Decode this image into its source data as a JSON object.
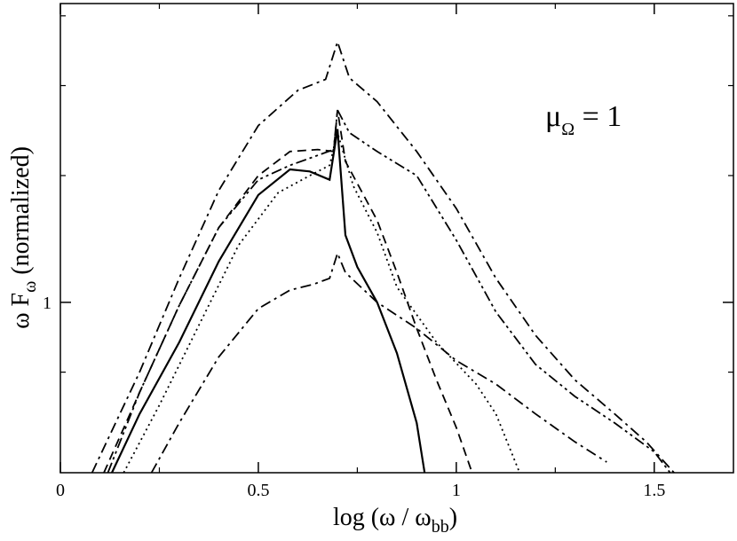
{
  "chart_data": {
    "type": "line",
    "xlim": [
      0,
      1.7
    ],
    "ylim": [
      0.58,
      2.6
    ],
    "ylog": true,
    "x_ticks": [
      {
        "value": 0,
        "label": "0"
      },
      {
        "value": 0.5,
        "label": "0.5"
      },
      {
        "value": 1,
        "label": "1"
      },
      {
        "value": 1.5,
        "label": "1.5"
      }
    ],
    "y_ticks": [
      {
        "value": 1,
        "label": "1"
      }
    ],
    "xlabel": {
      "main": "log (ω / ω",
      "sub": "bb",
      "end": ")"
    },
    "ylabel": {
      "a": "ω F",
      "sub": "ω",
      "b": " (normalized)"
    },
    "annotation": {
      "main": "μ",
      "sub": "Ω",
      "rest": " = 1"
    },
    "series": [
      {
        "style": "solid",
        "color": "#000000",
        "points": [
          [
            0.13,
            0.58
          ],
          [
            0.2,
            0.7
          ],
          [
            0.3,
            0.88
          ],
          [
            0.4,
            1.14
          ],
          [
            0.5,
            1.41
          ],
          [
            0.58,
            1.53
          ],
          [
            0.63,
            1.52
          ],
          [
            0.68,
            1.48
          ],
          [
            0.7,
            1.74
          ],
          [
            0.72,
            1.24
          ],
          [
            0.75,
            1.12
          ],
          [
            0.8,
            1.0
          ],
          [
            0.85,
            0.85
          ],
          [
            0.9,
            0.68
          ],
          [
            0.92,
            0.58
          ]
        ]
      },
      {
        "style": "dashed",
        "color": "#000000",
        "points": [
          [
            0.11,
            0.58
          ],
          [
            0.2,
            0.75
          ],
          [
            0.3,
            0.99
          ],
          [
            0.4,
            1.27
          ],
          [
            0.5,
            1.5
          ],
          [
            0.58,
            1.62
          ],
          [
            0.65,
            1.63
          ],
          [
            0.69,
            1.62
          ],
          [
            0.7,
            1.85
          ],
          [
            0.72,
            1.57
          ],
          [
            0.8,
            1.3
          ],
          [
            0.85,
            1.1
          ],
          [
            0.9,
            0.92
          ],
          [
            0.95,
            0.78
          ],
          [
            1.0,
            0.67
          ],
          [
            1.04,
            0.58
          ]
        ]
      },
      {
        "style": "dotted",
        "color": "#000000",
        "points": [
          [
            0.16,
            0.58
          ],
          [
            0.25,
            0.72
          ],
          [
            0.35,
            0.93
          ],
          [
            0.45,
            1.2
          ],
          [
            0.55,
            1.42
          ],
          [
            0.63,
            1.5
          ],
          [
            0.68,
            1.55
          ],
          [
            0.7,
            1.72
          ],
          [
            0.74,
            1.45
          ],
          [
            0.8,
            1.25
          ],
          [
            0.85,
            1.05
          ],
          [
            0.95,
            0.88
          ],
          [
            1.05,
            0.77
          ],
          [
            1.1,
            0.7
          ],
          [
            1.16,
            0.58
          ]
        ]
      },
      {
        "style": "dashdot",
        "color": "#000000",
        "points": [
          [
            0.08,
            0.58
          ],
          [
            0.2,
            0.8
          ],
          [
            0.3,
            1.08
          ],
          [
            0.4,
            1.43
          ],
          [
            0.5,
            1.76
          ],
          [
            0.6,
            1.97
          ],
          [
            0.67,
            2.04
          ],
          [
            0.7,
            2.3
          ],
          [
            0.73,
            2.05
          ],
          [
            0.8,
            1.9
          ],
          [
            0.9,
            1.62
          ],
          [
            1.0,
            1.35
          ],
          [
            1.1,
            1.08
          ],
          [
            1.2,
            0.9
          ],
          [
            1.3,
            0.78
          ],
          [
            1.4,
            0.7
          ],
          [
            1.48,
            0.64
          ],
          [
            1.55,
            0.58
          ]
        ]
      },
      {
        "style": "dashdotdot",
        "color": "#000000",
        "points": [
          [
            0.12,
            0.58
          ],
          [
            0.2,
            0.75
          ],
          [
            0.3,
            0.99
          ],
          [
            0.4,
            1.27
          ],
          [
            0.5,
            1.48
          ],
          [
            0.58,
            1.55
          ],
          [
            0.65,
            1.6
          ],
          [
            0.69,
            1.63
          ],
          [
            0.7,
            1.85
          ],
          [
            0.73,
            1.72
          ],
          [
            0.8,
            1.62
          ],
          [
            0.9,
            1.5
          ],
          [
            1.0,
            1.22
          ],
          [
            1.1,
            0.97
          ],
          [
            1.2,
            0.82
          ],
          [
            1.3,
            0.74
          ],
          [
            1.4,
            0.68
          ],
          [
            1.5,
            0.62
          ],
          [
            1.54,
            0.58
          ]
        ]
      },
      {
        "style": "dashdot-lower",
        "color": "#000000",
        "points": [
          [
            0.23,
            0.58
          ],
          [
            0.3,
            0.68
          ],
          [
            0.4,
            0.84
          ],
          [
            0.5,
            0.98
          ],
          [
            0.58,
            1.04
          ],
          [
            0.64,
            1.06
          ],
          [
            0.68,
            1.08
          ],
          [
            0.7,
            1.17
          ],
          [
            0.72,
            1.1
          ],
          [
            0.8,
            1.0
          ],
          [
            0.9,
            0.92
          ],
          [
            1.0,
            0.83
          ],
          [
            1.1,
            0.77
          ],
          [
            1.2,
            0.7
          ],
          [
            1.3,
            0.64
          ],
          [
            1.38,
            0.6
          ]
        ]
      }
    ]
  }
}
